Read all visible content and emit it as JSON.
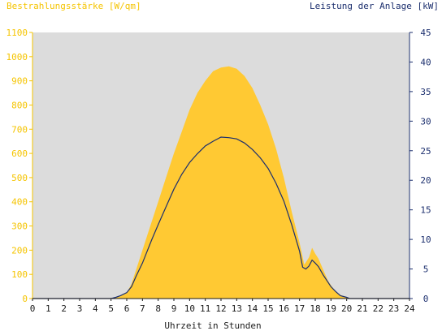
{
  "chart_data": {
    "type": "area",
    "ylabel_left": "Bestrahlungsstärke [W/qm]",
    "ylabel_right": "Leistung der Anlage [kW]",
    "xlabel": "Uhrzeit in Stunden",
    "xlim": [
      0,
      24
    ],
    "ylim_left": [
      0,
      1100
    ],
    "ylim_right": [
      0,
      45
    ],
    "x_ticks": [
      "0",
      "1",
      "2",
      "3",
      "4",
      "5",
      "6",
      "7",
      "8",
      "9",
      "10",
      "11",
      "12",
      "13",
      "14",
      "15",
      "16",
      "17",
      "18",
      "19",
      "20",
      "21",
      "22",
      "23",
      "24"
    ],
    "y_ticks_left": [
      "0",
      "100",
      "200",
      "300",
      "400",
      "500",
      "600",
      "700",
      "800",
      "900",
      "1000",
      "1100"
    ],
    "y_ticks_right": [
      "0",
      "5",
      "10",
      "15",
      "20",
      "25",
      "30",
      "35",
      "40",
      "45"
    ],
    "grid": false,
    "colors": {
      "irradiance": "#ffc933",
      "power": "#1c2f6e",
      "plot_bg": "#dcdcdc",
      "left_axis": "#f5c400",
      "right_axis": "#1c2f6e"
    },
    "series": [
      {
        "name": "Bestrahlungsstärke",
        "axis": "left",
        "x": [
          0,
          5.0,
          5.3,
          5.6,
          6.0,
          6.3,
          6.6,
          7.0,
          7.3,
          7.6,
          8.0,
          8.5,
          9.0,
          9.5,
          10.0,
          10.5,
          11.0,
          11.5,
          12.0,
          12.5,
          13.0,
          13.5,
          14.0,
          14.5,
          15.0,
          15.5,
          16.0,
          16.5,
          17.0,
          17.3,
          17.6,
          17.8,
          18.0,
          18.2,
          18.5,
          18.8,
          19.0,
          19.3,
          19.6,
          20.0,
          20.2,
          21,
          24
        ],
        "values": [
          0,
          0,
          3,
          10,
          25,
          60,
          120,
          200,
          260,
          320,
          400,
          500,
          600,
          690,
          780,
          850,
          900,
          940,
          955,
          960,
          950,
          920,
          870,
          800,
          720,
          620,
          500,
          360,
          230,
          140,
          170,
          210,
          185,
          165,
          120,
          75,
          55,
          30,
          15,
          5,
          0,
          0,
          0
        ]
      },
      {
        "name": "Leistung",
        "axis": "right",
        "x": [
          0,
          5.0,
          5.3,
          5.6,
          6.0,
          6.3,
          6.6,
          7.0,
          7.3,
          7.6,
          8.0,
          8.5,
          9.0,
          9.5,
          10.0,
          10.5,
          11.0,
          11.5,
          12.0,
          12.5,
          13.0,
          13.5,
          14.0,
          14.5,
          15.0,
          15.5,
          16.0,
          16.5,
          17.0,
          17.2,
          17.4,
          17.6,
          17.8,
          18.0,
          18.2,
          18.5,
          18.8,
          19.0,
          19.3,
          19.6,
          20.0,
          20.2,
          21,
          24
        ],
        "values": [
          0,
          0,
          0.2,
          0.5,
          1.0,
          2.0,
          3.8,
          6.0,
          8.0,
          10.0,
          12.5,
          15.5,
          18.5,
          21.0,
          23.0,
          24.5,
          25.8,
          26.6,
          27.3,
          27.2,
          27.0,
          26.3,
          25.2,
          23.8,
          22.0,
          19.5,
          16.5,
          12.5,
          8.0,
          5.3,
          5.0,
          5.5,
          6.5,
          6.0,
          5.4,
          4.0,
          2.8,
          2.0,
          1.2,
          0.5,
          0.2,
          0,
          0,
          0
        ]
      }
    ]
  }
}
